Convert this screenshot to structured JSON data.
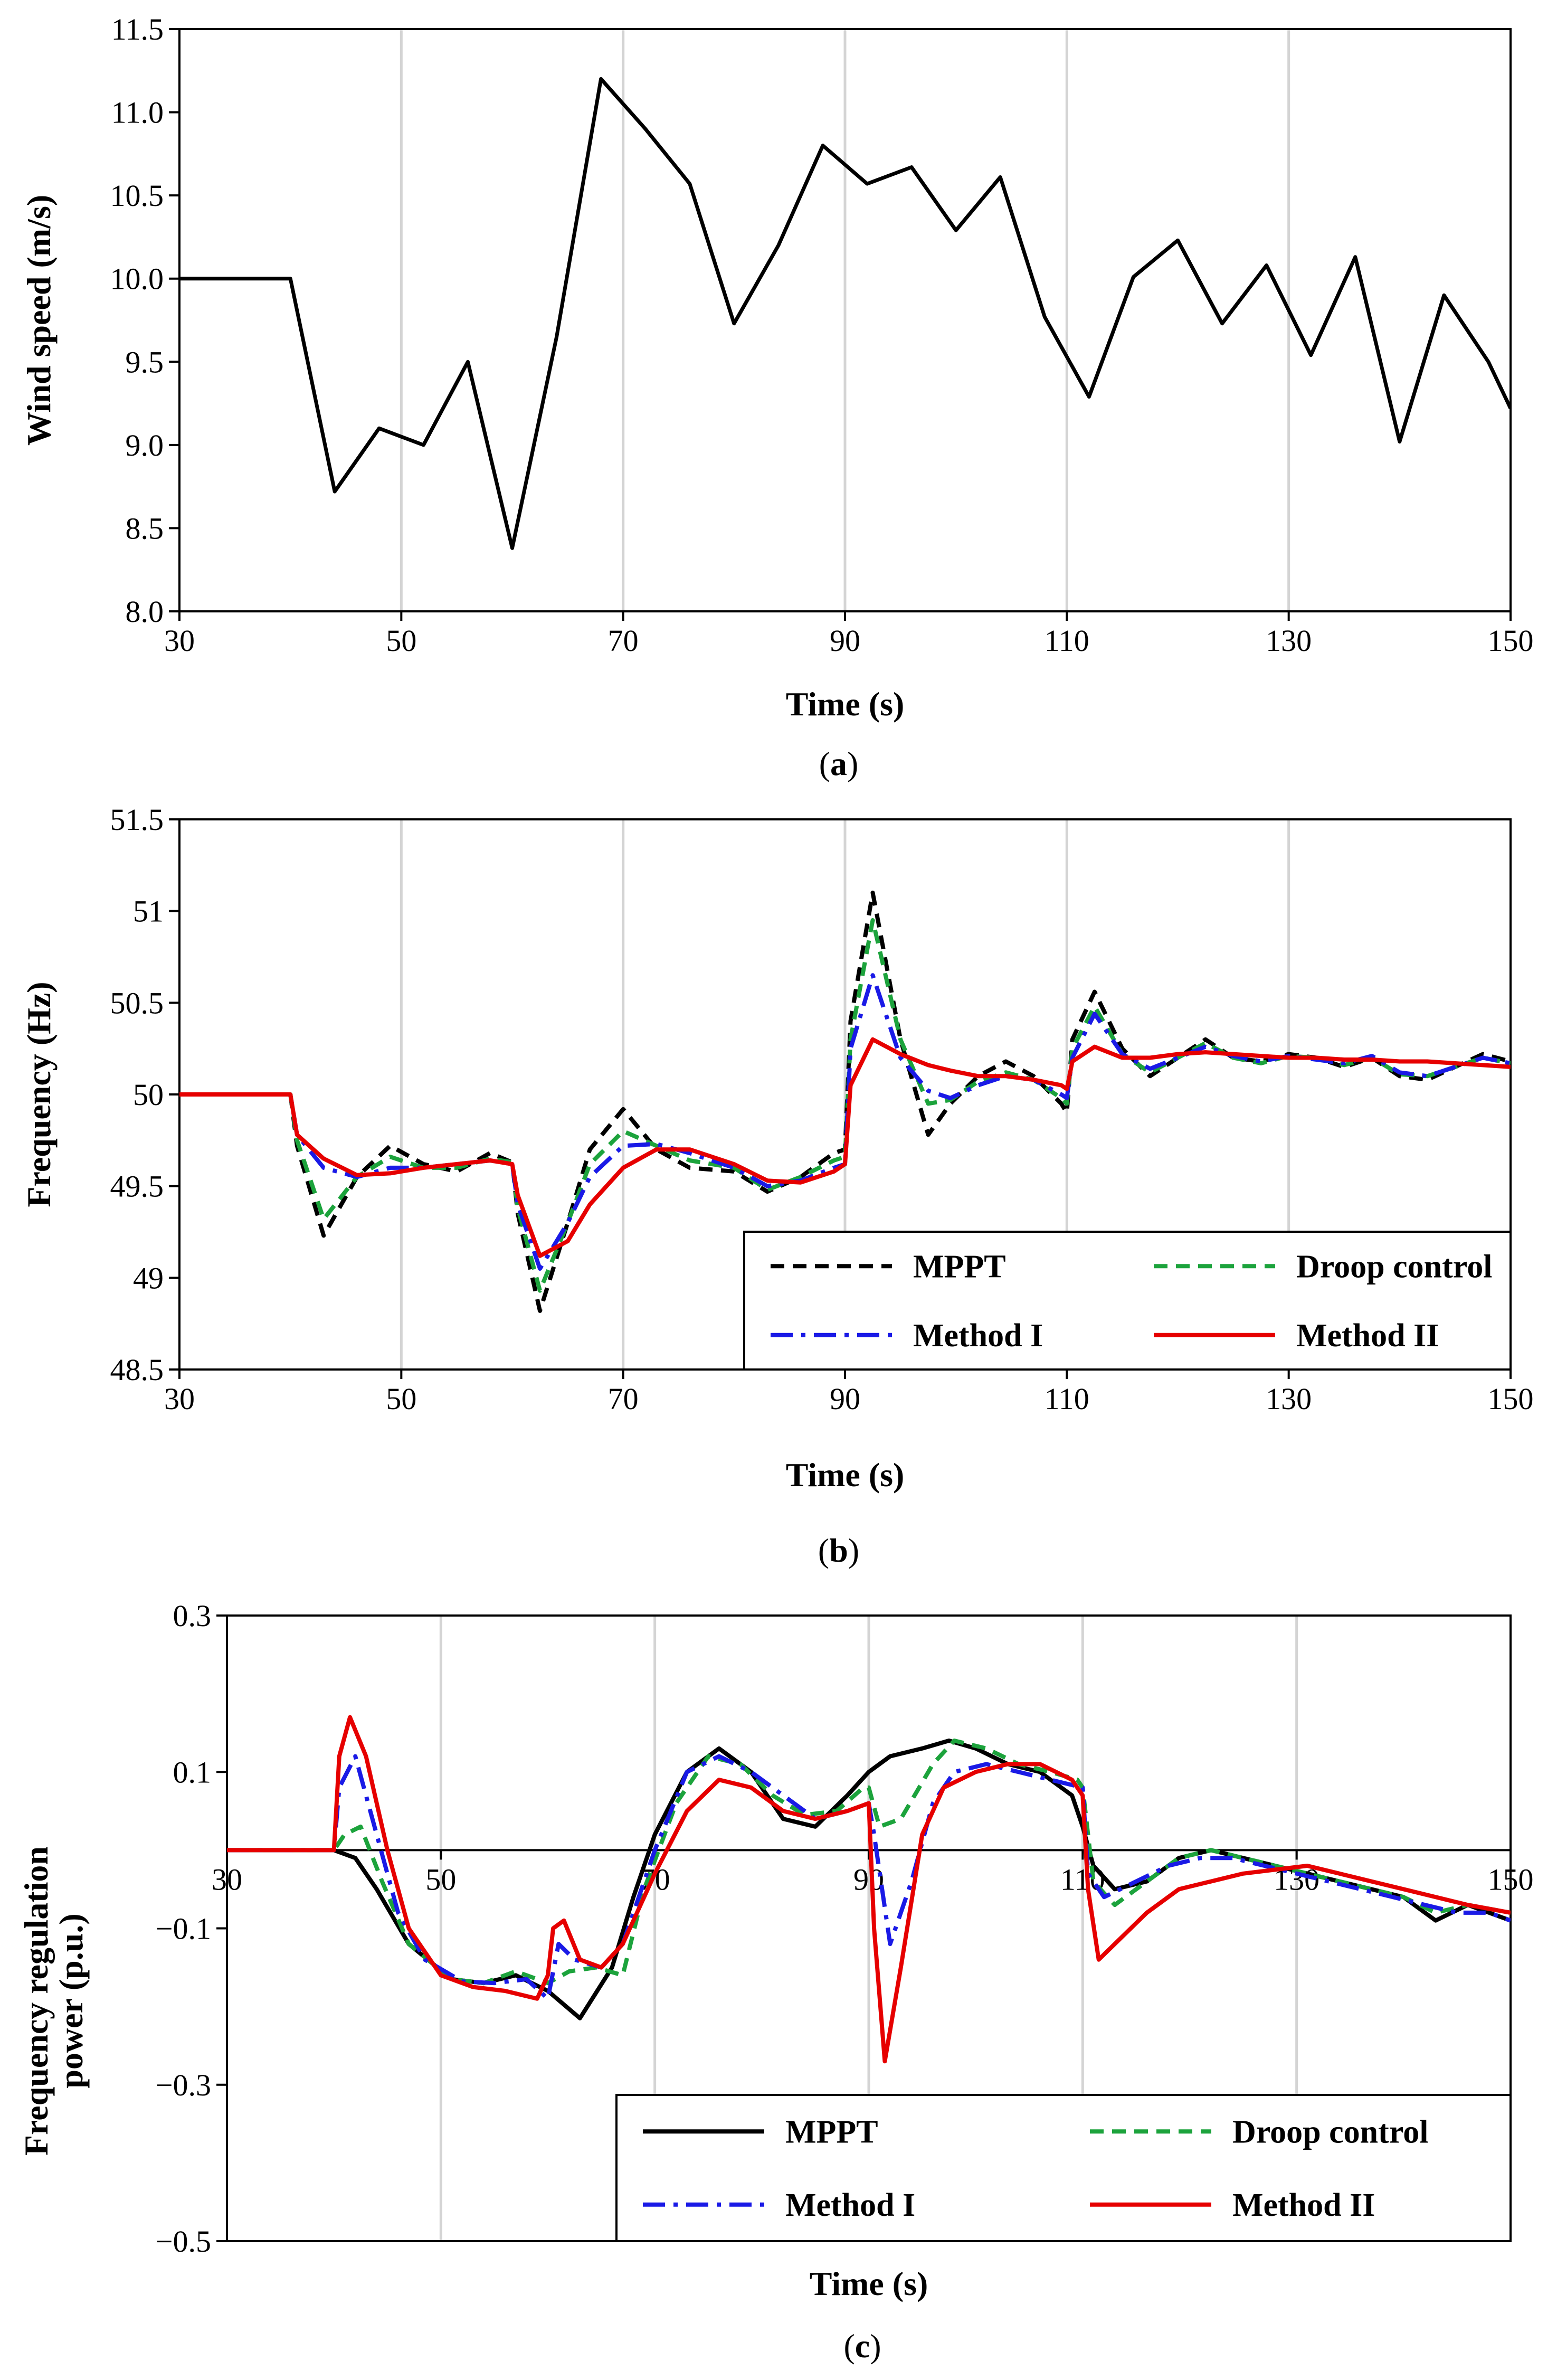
{
  "chart_data": [
    {
      "id": "a",
      "type": "line",
      "panel_label": "a",
      "xlabel": "Time (s)",
      "ylabel": "Wind speed (m/s)",
      "xlim": [
        30,
        150
      ],
      "ylim": [
        8.0,
        11.5
      ],
      "xticks": [
        30,
        50,
        70,
        90,
        110,
        130,
        150
      ],
      "yticks": [
        8.0,
        8.5,
        9.0,
        9.5,
        10.0,
        10.5,
        11.0,
        11.5
      ],
      "ytick_labels": [
        "8.0",
        "8.5",
        "9.0",
        "9.5",
        "10.0",
        "10.5",
        "11.0",
        "11.5"
      ],
      "xtick_labels": [
        "30",
        "50",
        "70",
        "90",
        "110",
        "130",
        "150"
      ],
      "grid": "vertical",
      "legend": [],
      "series": [
        {
          "name": "Wind speed",
          "color": "#000000",
          "dash": "solid",
          "x": [
            30,
            40,
            44,
            48,
            52,
            56,
            60,
            64,
            68,
            72,
            76,
            80,
            84,
            88,
            92,
            96,
            100,
            104,
            108,
            112,
            116,
            120,
            124,
            128,
            132,
            136,
            140,
            144,
            148,
            150
          ],
          "y": [
            10.0,
            10.0,
            8.72,
            9.1,
            9.0,
            9.5,
            8.38,
            9.65,
            11.2,
            10.9,
            10.57,
            9.73,
            10.2,
            10.8,
            10.57,
            10.67,
            10.29,
            10.61,
            9.77,
            9.29,
            10.01,
            10.23,
            9.73,
            10.08,
            9.54,
            10.13,
            9.02,
            9.9,
            9.5,
            9.22
          ]
        }
      ]
    },
    {
      "id": "b",
      "type": "line",
      "panel_label": "b",
      "xlabel": "Time (s)",
      "ylabel": "Frequency (Hz)",
      "xlim": [
        30,
        150
      ],
      "ylim": [
        48.5,
        51.5
      ],
      "xticks": [
        30,
        50,
        70,
        90,
        110,
        130,
        150
      ],
      "yticks": [
        48.5,
        49,
        49.5,
        50,
        50.5,
        51,
        51.5
      ],
      "ytick_labels": [
        "48.5",
        "49",
        "49.5",
        "50",
        "50.5",
        "51",
        "51.5"
      ],
      "xtick_labels": [
        "30",
        "50",
        "70",
        "90",
        "110",
        "130",
        "150"
      ],
      "grid": "vertical",
      "legend": [
        "MPPT",
        "Droop control",
        "Method I",
        "Method II"
      ],
      "legend_position": "bottom-right",
      "series": [
        {
          "name": "MPPT",
          "color": "#000000",
          "dash": "dashed",
          "x": [
            30,
            40,
            40.6,
            43,
            46,
            49,
            52,
            55,
            58,
            60,
            60.5,
            62.5,
            65,
            67,
            70,
            73,
            76,
            80,
            83,
            86,
            89,
            90,
            90.5,
            92.5,
            95,
            97.5,
            99.5,
            102,
            104.5,
            107,
            109.5,
            110,
            110.5,
            112.5,
            115,
            117.5,
            120,
            122.5,
            125,
            127.5,
            130,
            132.5,
            135,
            137.5,
            140,
            142.5,
            145,
            147.5,
            150
          ],
          "y": [
            50,
            50,
            49.72,
            49.23,
            49.55,
            49.72,
            49.62,
            49.58,
            49.68,
            49.63,
            49.35,
            48.82,
            49.3,
            49.7,
            49.92,
            49.7,
            49.6,
            49.58,
            49.47,
            49.55,
            49.68,
            49.7,
            50.4,
            51.1,
            50.3,
            49.78,
            49.95,
            50.1,
            50.18,
            50.1,
            49.95,
            49.9,
            50.3,
            50.56,
            50.25,
            50.1,
            50.2,
            50.3,
            50.2,
            50.18,
            50.22,
            50.2,
            50.15,
            50.2,
            50.1,
            50.08,
            50.15,
            50.22,
            50.18
          ]
        },
        {
          "name": "Droop control",
          "color": "#1ca33c",
          "dash": "dashed",
          "x": [
            30,
            40,
            40.6,
            43,
            46,
            49,
            52,
            55,
            58,
            60,
            60.5,
            62.5,
            65,
            67,
            70,
            73,
            76,
            80,
            83,
            86,
            89,
            90,
            90.5,
            92.5,
            95,
            97.5,
            99.5,
            102,
            104.5,
            107,
            109.5,
            110,
            110.5,
            112.5,
            115,
            117.5,
            120,
            122.5,
            125,
            127.5,
            130,
            132.5,
            135,
            137.5,
            140,
            142.5,
            145,
            147.5,
            150
          ],
          "y": [
            50,
            50,
            49.75,
            49.32,
            49.55,
            49.66,
            49.6,
            49.6,
            49.65,
            49.63,
            49.38,
            48.93,
            49.3,
            49.62,
            49.8,
            49.72,
            49.64,
            49.6,
            49.48,
            49.55,
            49.64,
            49.66,
            50.3,
            50.95,
            50.3,
            49.95,
            49.97,
            50.07,
            50.12,
            50.08,
            49.98,
            49.95,
            50.25,
            50.48,
            50.22,
            50.12,
            50.2,
            50.28,
            50.2,
            50.17,
            50.21,
            50.2,
            50.16,
            50.2,
            50.11,
            50.1,
            50.15,
            50.2,
            50.17
          ]
        },
        {
          "name": "Method I",
          "color": "#1a1ae6",
          "dash": "dashdot",
          "x": [
            30,
            40,
            40.6,
            43,
            46,
            49,
            52,
            55,
            58,
            60,
            60.5,
            62.5,
            65,
            67,
            70,
            73,
            76,
            80,
            83,
            86,
            89,
            90,
            90.5,
            92.5,
            95,
            97.5,
            99.5,
            102,
            104.5,
            107,
            109.5,
            110,
            110.5,
            112.5,
            115,
            117.5,
            120,
            122.5,
            125,
            127.5,
            130,
            132.5,
            135,
            137.5,
            140,
            142.5,
            145,
            147.5,
            150
          ],
          "y": [
            50,
            50,
            49.78,
            49.6,
            49.55,
            49.6,
            49.6,
            49.62,
            49.64,
            49.62,
            49.4,
            49.05,
            49.3,
            49.55,
            49.72,
            49.73,
            49.68,
            49.6,
            49.5,
            49.53,
            49.6,
            49.62,
            50.25,
            50.65,
            50.2,
            50.02,
            49.98,
            50.05,
            50.1,
            50.08,
            50.0,
            49.98,
            50.2,
            50.44,
            50.22,
            50.14,
            50.2,
            50.26,
            50.21,
            50.18,
            50.21,
            50.19,
            50.17,
            50.21,
            50.12,
            50.1,
            50.15,
            50.2,
            50.17
          ]
        },
        {
          "name": "Method II",
          "color": "#e60000",
          "dash": "solid",
          "x": [
            30,
            40,
            40.6,
            43,
            46,
            49,
            52,
            55,
            58,
            60,
            60.5,
            62.5,
            65,
            67,
            70,
            73,
            76,
            80,
            83,
            86,
            89,
            90,
            90.5,
            92.5,
            95,
            97.5,
            99.5,
            102,
            104.5,
            107,
            109.5,
            110,
            110.5,
            112.5,
            115,
            117.5,
            120,
            122.5,
            125,
            127.5,
            130,
            132.5,
            135,
            137.5,
            140,
            142.5,
            145,
            147.5,
            150
          ],
          "y": [
            50,
            50,
            49.78,
            49.65,
            49.56,
            49.57,
            49.6,
            49.62,
            49.64,
            49.62,
            49.45,
            49.12,
            49.2,
            49.4,
            49.6,
            49.7,
            49.7,
            49.62,
            49.53,
            49.52,
            49.58,
            49.62,
            50.05,
            50.3,
            50.22,
            50.16,
            50.13,
            50.1,
            50.1,
            50.08,
            50.05,
            50.03,
            50.18,
            50.26,
            50.2,
            50.2,
            50.22,
            50.23,
            50.22,
            50.21,
            50.2,
            50.2,
            50.19,
            50.19,
            50.18,
            50.18,
            50.17,
            50.16,
            50.15
          ]
        }
      ]
    },
    {
      "id": "c",
      "type": "line",
      "panel_label": "c",
      "xlabel": "Time (s)",
      "ylabel": "Frequency regulation power (p.u.)",
      "ylabel_lines": [
        "Frequency regulation",
        "power (p.u.)"
      ],
      "xlim": [
        30,
        150
      ],
      "ylim": [
        -0.5,
        0.3
      ],
      "xticks": [
        30,
        50,
        70,
        90,
        110,
        130,
        150
      ],
      "yticks": [
        -0.5,
        -0.3,
        -0.1,
        0.1,
        0.3
      ],
      "ytick_labels": [
        "−0.5",
        "−0.3",
        "−0.1",
        "0.1",
        "0.3"
      ],
      "xtick_labels": [
        "30",
        "50",
        "70",
        "90",
        "110",
        "130",
        "150"
      ],
      "x_axis_crosses_at": 0,
      "grid": "vertical",
      "legend": [
        "MPPT",
        "Droop control",
        "Method I",
        "Method II"
      ],
      "legend_position": "bottom-right",
      "series": [
        {
          "name": "MPPT",
          "color": "#000000",
          "dash": "solid",
          "x": [
            30,
            40,
            42,
            44,
            47,
            51,
            54,
            57,
            60,
            63,
            66,
            68,
            70,
            73,
            76,
            79,
            82,
            85,
            88,
            90,
            92,
            95,
            97.5,
            100,
            103,
            106,
            109,
            110,
            111,
            113,
            116,
            119,
            122,
            125,
            128,
            131,
            134,
            137,
            140,
            143,
            146,
            150
          ],
          "y": [
            0,
            0,
            -0.01,
            -0.05,
            -0.12,
            -0.165,
            -0.17,
            -0.16,
            -0.18,
            -0.215,
            -0.15,
            -0.06,
            0.02,
            0.1,
            0.13,
            0.1,
            0.04,
            0.03,
            0.07,
            0.1,
            0.12,
            0.13,
            0.14,
            0.13,
            0.11,
            0.1,
            0.07,
            0.03,
            -0.02,
            -0.05,
            -0.04,
            -0.01,
            0.0,
            -0.01,
            -0.02,
            -0.03,
            -0.04,
            -0.05,
            -0.06,
            -0.09,
            -0.07,
            -0.09
          ]
        },
        {
          "name": "Droop control",
          "color": "#1ca33c",
          "dash": "dashed",
          "x": [
            30,
            40,
            41,
            42.5,
            44.5,
            47,
            51,
            54,
            57,
            60,
            62,
            64.5,
            67,
            69,
            72,
            75,
            78,
            81,
            84,
            87,
            89.5,
            90,
            91,
            93,
            96,
            98,
            101,
            104,
            107,
            109.5,
            110,
            111,
            113,
            116,
            119,
            122,
            125,
            128,
            131,
            134,
            137,
            140,
            143,
            146,
            150
          ],
          "y": [
            0,
            0,
            0.02,
            0.03,
            -0.04,
            -0.12,
            -0.165,
            -0.17,
            -0.155,
            -0.17,
            -0.155,
            -0.15,
            -0.16,
            -0.05,
            0.06,
            0.12,
            0.11,
            0.07,
            0.045,
            0.05,
            0.08,
            0.08,
            0.03,
            0.04,
            0.11,
            0.14,
            0.13,
            0.11,
            0.1,
            0.09,
            0.08,
            -0.04,
            -0.07,
            -0.04,
            -0.01,
            0.0,
            -0.01,
            -0.02,
            -0.03,
            -0.04,
            -0.05,
            -0.06,
            -0.08,
            -0.07,
            -0.08
          ]
        },
        {
          "name": "Method I",
          "color": "#1a1ae6",
          "dash": "dashdot",
          "x": [
            30,
            40,
            40.5,
            42,
            44,
            46,
            48.5,
            52,
            55,
            58,
            60,
            61,
            62.5,
            65,
            67,
            70,
            73,
            76,
            79,
            82,
            85,
            88,
            90,
            90.5,
            92,
            94,
            96,
            98,
            101,
            104,
            107,
            110,
            110.5,
            112,
            115,
            118,
            121,
            124,
            127,
            130,
            133,
            136,
            139,
            142,
            145,
            148,
            150
          ],
          "y": [
            0,
            0,
            0.08,
            0.12,
            0.02,
            -0.08,
            -0.14,
            -0.168,
            -0.17,
            -0.165,
            -0.19,
            -0.12,
            -0.14,
            -0.15,
            -0.12,
            0.0,
            0.1,
            0.12,
            0.1,
            0.07,
            0.04,
            0.05,
            0.06,
            0.02,
            -0.12,
            -0.04,
            0.06,
            0.1,
            0.11,
            0.1,
            0.09,
            0.08,
            -0.03,
            -0.06,
            -0.04,
            -0.02,
            -0.01,
            -0.01,
            -0.02,
            -0.03,
            -0.04,
            -0.05,
            -0.06,
            -0.07,
            -0.08,
            -0.08,
            -0.09
          ]
        },
        {
          "name": "Method II",
          "color": "#e60000",
          "dash": "solid",
          "x": [
            30,
            40,
            40.5,
            41.5,
            43,
            45,
            47,
            50,
            53,
            56,
            59,
            60,
            60.5,
            61.5,
            63,
            65,
            67,
            70,
            73,
            76,
            79,
            82,
            85,
            88,
            90,
            90.5,
            91.5,
            93,
            95,
            97,
            100,
            103,
            106,
            109,
            110,
            110.5,
            111.5,
            113,
            116,
            119,
            122,
            125,
            128,
            131,
            134,
            137,
            140,
            143,
            146,
            150
          ],
          "y": [
            0,
            0,
            0.12,
            0.17,
            0.12,
            0.0,
            -0.1,
            -0.16,
            -0.175,
            -0.18,
            -0.19,
            -0.16,
            -0.1,
            -0.09,
            -0.14,
            -0.15,
            -0.12,
            -0.03,
            0.05,
            0.09,
            0.08,
            0.05,
            0.04,
            0.05,
            0.06,
            -0.1,
            -0.27,
            -0.15,
            0.02,
            0.08,
            0.1,
            0.11,
            0.11,
            0.09,
            0.07,
            -0.05,
            -0.14,
            -0.12,
            -0.08,
            -0.05,
            -0.04,
            -0.03,
            -0.025,
            -0.02,
            -0.03,
            -0.04,
            -0.05,
            -0.06,
            -0.07,
            -0.08
          ]
        }
      ]
    }
  ]
}
